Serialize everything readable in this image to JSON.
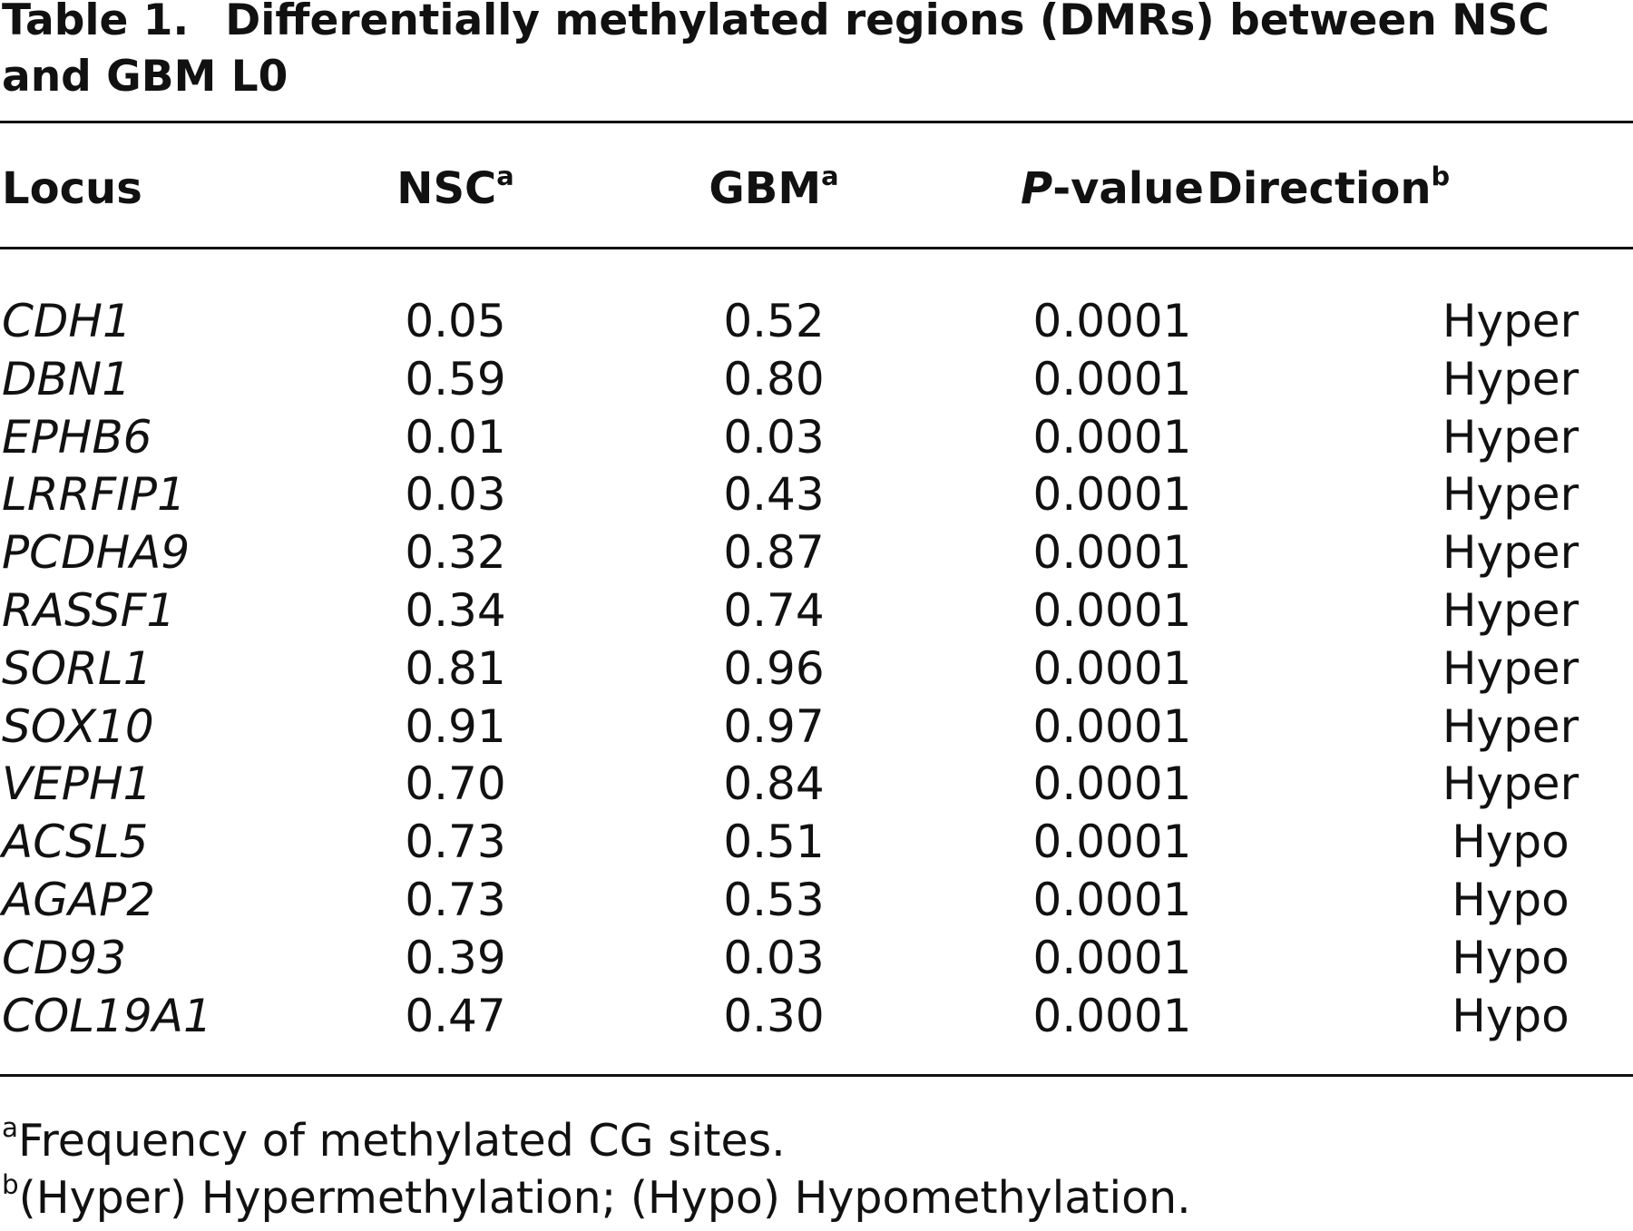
{
  "title": {
    "label": "Table 1.",
    "text": "Differentially methylated regions (DMRs) between NSC and GBM L0"
  },
  "table": {
    "columns": [
      {
        "text": "Locus"
      },
      {
        "text": "NSC",
        "sup": "a"
      },
      {
        "text": "GBM",
        "sup": "a"
      },
      {
        "italic": "P",
        "text": "-value"
      },
      {
        "text": "Direction",
        "sup": "b"
      }
    ],
    "rows": [
      [
        "CDH1",
        "0.05",
        "0.52",
        "0.0001",
        "Hyper"
      ],
      [
        "DBN1",
        "0.59",
        "0.80",
        "0.0001",
        "Hyper"
      ],
      [
        "EPHB6",
        "0.01",
        "0.03",
        "0.0001",
        "Hyper"
      ],
      [
        "LRRFIP1",
        "0.03",
        "0.43",
        "0.0001",
        "Hyper"
      ],
      [
        "PCDHA9",
        "0.32",
        "0.87",
        "0.0001",
        "Hyper"
      ],
      [
        "RASSF1",
        "0.34",
        "0.74",
        "0.0001",
        "Hyper"
      ],
      [
        "SORL1",
        "0.81",
        "0.96",
        "0.0001",
        "Hyper"
      ],
      [
        "SOX10",
        "0.91",
        "0.97",
        "0.0001",
        "Hyper"
      ],
      [
        "VEPH1",
        "0.70",
        "0.84",
        "0.0001",
        "Hyper"
      ],
      [
        "ACSL5",
        "0.73",
        "0.51",
        "0.0001",
        "Hypo"
      ],
      [
        "AGAP2",
        "0.73",
        "0.53",
        "0.0001",
        "Hypo"
      ],
      [
        "CD93",
        "0.39",
        "0.03",
        "0.0001",
        "Hypo"
      ],
      [
        "COL19A1",
        "0.47",
        "0.30",
        "0.0001",
        "Hypo"
      ]
    ]
  },
  "footnotes": [
    {
      "mark": "a",
      "text": "Frequency of methylated CG sites."
    },
    {
      "mark": "b",
      "text": "(Hyper) Hypermethylation; (Hypo) Hypomethylation."
    }
  ]
}
